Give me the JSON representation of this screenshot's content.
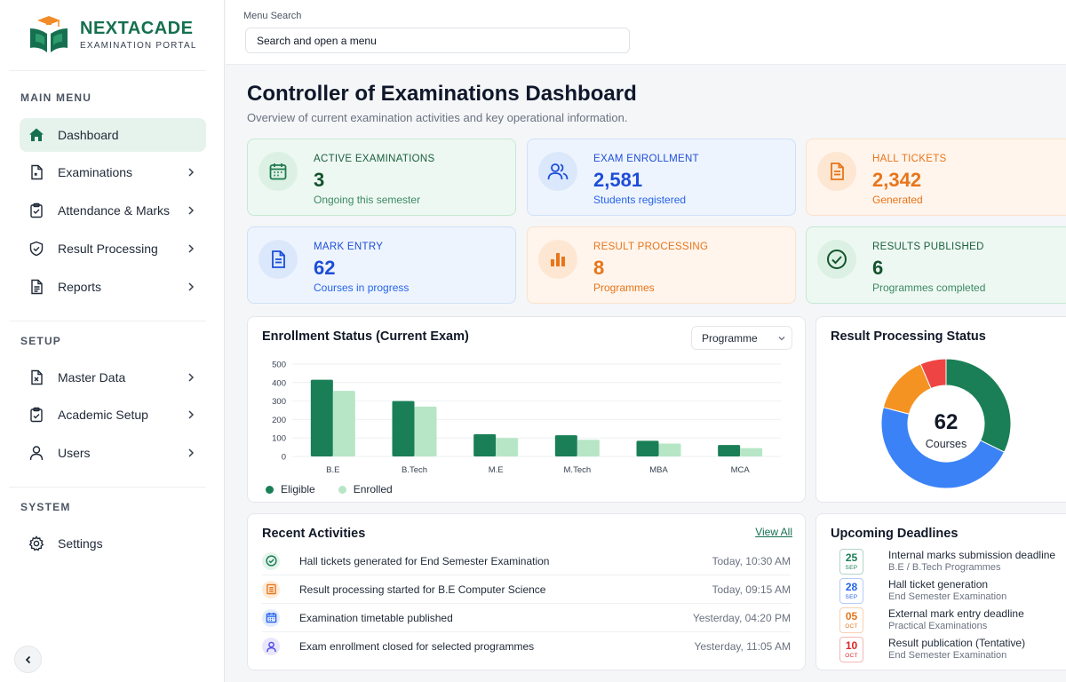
{
  "brand": {
    "name": "NEXTACADE",
    "subtitle": "EXAMINATION PORTAL"
  },
  "sidebar": {
    "sections": [
      {
        "label": "MAIN MENU"
      },
      {
        "label": "SETUP"
      },
      {
        "label": "SYSTEM"
      }
    ],
    "items": [
      {
        "label": "Dashboard",
        "icon": "home-icon"
      },
      {
        "label": "Examinations",
        "icon": "exam-doc-icon"
      },
      {
        "label": "Attendance & Marks",
        "icon": "clipboard-check-icon"
      },
      {
        "label": "Result Processing",
        "icon": "shield-check-icon"
      },
      {
        "label": "Reports",
        "icon": "report-icon"
      },
      {
        "label": "Master Data",
        "icon": "master-data-icon"
      },
      {
        "label": "Academic Setup",
        "icon": "academic-setup-icon"
      },
      {
        "label": "Users",
        "icon": "user-icon"
      },
      {
        "label": "Settings",
        "icon": "gear-icon"
      }
    ]
  },
  "search": {
    "label": "Menu Search",
    "placeholder": "Search and open a menu"
  },
  "page": {
    "title": "Controller of Examinations Dashboard",
    "subtitle": "Overview of current examination activities and key operational information."
  },
  "stats": [
    {
      "title": "ACTIVE EXAMINATIONS",
      "value": "3",
      "foot": "Ongoing this semester",
      "icon": "calendar-icon",
      "color": "#1e7a4e"
    },
    {
      "title": "EXAM ENROLLMENT",
      "value": "2,581",
      "foot": "Students registered",
      "icon": "users-icon",
      "color": "#1d4ed8"
    },
    {
      "title": "HALL TICKETS",
      "value": "2,342",
      "foot": "Generated",
      "icon": "ticket-doc-icon",
      "color": "#e8751a"
    },
    {
      "title": "MARK ENTRY",
      "value": "62",
      "foot": "Courses in progress",
      "icon": "document-icon",
      "color": "#1d4ed8"
    },
    {
      "title": "RESULT PROCESSING",
      "value": "8",
      "foot": "Programmes",
      "icon": "bar-chart-icon",
      "color": "#e8751a"
    },
    {
      "title": "RESULTS PUBLISHED",
      "value": "6",
      "foot": "Programmes completed",
      "icon": "check-circle-icon",
      "color": "#1e7a4e"
    }
  ],
  "enrollment": {
    "title": "Enrollment Status (Current Exam)",
    "filter": "Programme"
  },
  "chart_data": [
    {
      "type": "bar",
      "title": "Enrollment Status (Current Exam)",
      "categories": [
        "B.E",
        "B.Tech",
        "M.E",
        "M.Tech",
        "MBA",
        "MCA"
      ],
      "series": [
        {
          "name": "Eligible",
          "values": [
            415,
            300,
            120,
            115,
            85,
            62
          ],
          "color": "#1a7f56"
        },
        {
          "name": "Enrolled",
          "values": [
            355,
            270,
            100,
            90,
            70,
            45
          ],
          "color": "#b7e6c6"
        }
      ],
      "yticks": [
        0,
        100,
        200,
        300,
        400,
        500
      ],
      "ylim": [
        0,
        500
      ],
      "grid": true,
      "legend": "bottom-left"
    },
    {
      "type": "pie",
      "title": "Result Processing Status",
      "center_value": "62",
      "center_label": "Courses",
      "slices": [
        {
          "value": 20,
          "color": "#1a7f56"
        },
        {
          "value": 29,
          "color": "#3b82f6"
        },
        {
          "value": 9,
          "color": "#f59322"
        },
        {
          "value": 4,
          "color": "#ef4444"
        }
      ]
    }
  ],
  "activities": {
    "title": "Recent Activities",
    "view_all": "View All",
    "items": [
      {
        "text": "Hall tickets generated for End Semester Examination",
        "time": "Today, 10:30 AM",
        "icon": "check-circle-icon",
        "color": "#1a7f56",
        "bg": "#e6f3ec"
      },
      {
        "text": "Result processing started for B.E Computer Science",
        "time": "Today, 09:15 AM",
        "icon": "list-doc-icon",
        "color": "#e8751a",
        "bg": "#fdebd9"
      },
      {
        "text": "Examination timetable published",
        "time": "Yesterday, 04:20 PM",
        "icon": "calendar-icon",
        "color": "#2563eb",
        "bg": "#e3ecfb"
      },
      {
        "text": "Exam enrollment closed for selected programmes",
        "time": "Yesterday, 11:05 AM",
        "icon": "user-icon",
        "color": "#4f46e5",
        "bg": "#e8e7fb"
      }
    ]
  },
  "deadlines": {
    "title": "Upcoming Deadlines",
    "items": [
      {
        "day": "25",
        "month": "SEP",
        "title": "Internal marks submission deadline",
        "sub": "B.E / B.Tech Programmes",
        "color": "#1a7f56"
      },
      {
        "day": "28",
        "month": "SEP",
        "title": "Hall ticket generation",
        "sub": "End Semester Examination",
        "color": "#2563eb"
      },
      {
        "day": "05",
        "month": "OCT",
        "title": "External mark entry deadline",
        "sub": "Practical Examinations",
        "color": "#e8751a"
      },
      {
        "day": "10",
        "month": "OCT",
        "title": "Result publication (Tentative)",
        "sub": "End Semester Examination",
        "color": "#dc2626"
      }
    ]
  }
}
